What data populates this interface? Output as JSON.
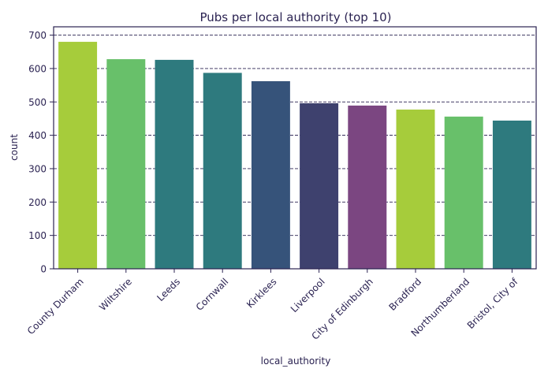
{
  "chart_data": {
    "type": "bar",
    "title": "Pubs per local authority (top 10)",
    "xlabel": "local_authority",
    "ylabel": "count",
    "categories": [
      "County Durham",
      "Wiltshire",
      "Leeds",
      "Cornwall",
      "Kirklees",
      "Liverpool",
      "City of Edinburgh",
      "Bradford",
      "Northumberland",
      "Bristol, City of"
    ],
    "values": [
      680,
      628,
      626,
      587,
      562,
      496,
      489,
      477,
      456,
      444
    ],
    "bar_colors": [
      "#a6cc3b",
      "#68c06a",
      "#2e7a7e",
      "#2e7a7e",
      "#36537a",
      "#3e416e",
      "#7b4681",
      "#a6cc3b",
      "#68c06a",
      "#2e7a7e"
    ],
    "ylim": [
      0,
      725
    ],
    "yticks": [
      0,
      100,
      200,
      300,
      400,
      500,
      600,
      700
    ],
    "grid": "horizontal dashed",
    "legend": "none"
  }
}
